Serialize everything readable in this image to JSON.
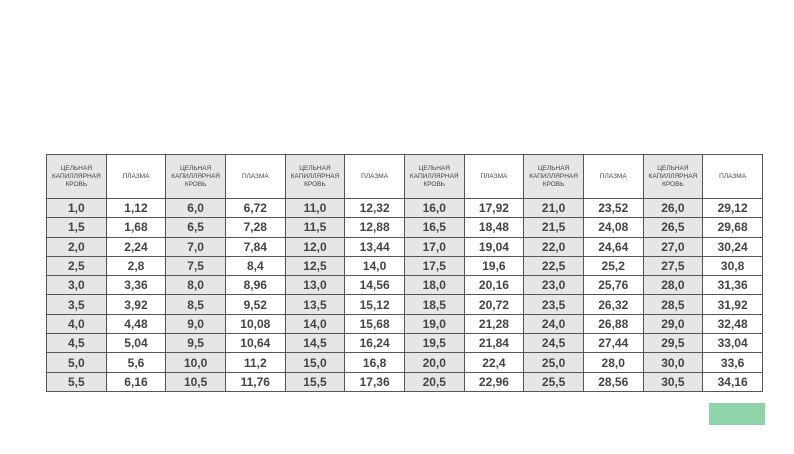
{
  "table": {
    "header": [
      "ЦЕЛЬНАЯ КАПИЛЛЯРНАЯ КРОВЬ",
      "ПЛАЗМА",
      "ЦЕЛЬНАЯ КАПИЛЛЯРНАЯ КРОВЬ",
      "ПЛАЗМА",
      "ЦЕЛЬНАЯ КАПИЛЛЯРНАЯ КРОВЬ",
      "ПЛАЗМА",
      "ЦЕЛЬНАЯ КАПИЛЛЯРНАЯ КРОВЬ",
      "ПЛАЗМА",
      "ЦЕЛЬНАЯ КАПИЛЛЯРНАЯ КРОВЬ",
      "ПЛАЗМА",
      "ЦЕЛЬНАЯ КАПИЛЛЯРНАЯ КРОВЬ",
      "ПЛАЗМА"
    ],
    "rows": [
      [
        "1,0",
        "1,12",
        "6,0",
        "6,72",
        "11,0",
        "12,32",
        "16,0",
        "17,92",
        "21,0",
        "23,52",
        "26,0",
        "29,12"
      ],
      [
        "1,5",
        "1,68",
        "6,5",
        "7,28",
        "11,5",
        "12,88",
        "16,5",
        "18,48",
        "21,5",
        "24,08",
        "26,5",
        "29,68"
      ],
      [
        "2,0",
        "2,24",
        "7,0",
        "7,84",
        "12,0",
        "13,44",
        "17,0",
        "19,04",
        "22,0",
        "24,64",
        "27,0",
        "30,24"
      ],
      [
        "2,5",
        "2,8",
        "7,5",
        "8,4",
        "12,5",
        "14,0",
        "17,5",
        "19,6",
        "22,5",
        "25,2",
        "27,5",
        "30,8"
      ],
      [
        "3,0",
        "3,36",
        "8,0",
        "8,96",
        "13,0",
        "14,56",
        "18,0",
        "20,16",
        "23,0",
        "25,76",
        "28,0",
        "31,36"
      ],
      [
        "3,5",
        "3,92",
        "8,5",
        "9,52",
        "13,5",
        "15,12",
        "18,5",
        "20,72",
        "23,5",
        "26,32",
        "28,5",
        "31,92"
      ],
      [
        "4,0",
        "4,48",
        "9,0",
        "10,08",
        "14,0",
        "15,68",
        "19,0",
        "21,28",
        "24,0",
        "26,88",
        "29,0",
        "32,48"
      ],
      [
        "4,5",
        "5,04",
        "9,5",
        "10,64",
        "14,5",
        "16,24",
        "19,5",
        "21,84",
        "24,5",
        "27,44",
        "29,5",
        "33,04"
      ],
      [
        "5,0",
        "5,6",
        "10,0",
        "11,2",
        "15,0",
        "16,8",
        "20,0",
        "22,4",
        "25,0",
        "28,0",
        "30,0",
        "33,6"
      ],
      [
        "5,5",
        "6,16",
        "10,5",
        "11,76",
        "15,5",
        "17,36",
        "20,5",
        "22,96",
        "25,5",
        "28,56",
        "30,5",
        "34,16"
      ]
    ]
  }
}
